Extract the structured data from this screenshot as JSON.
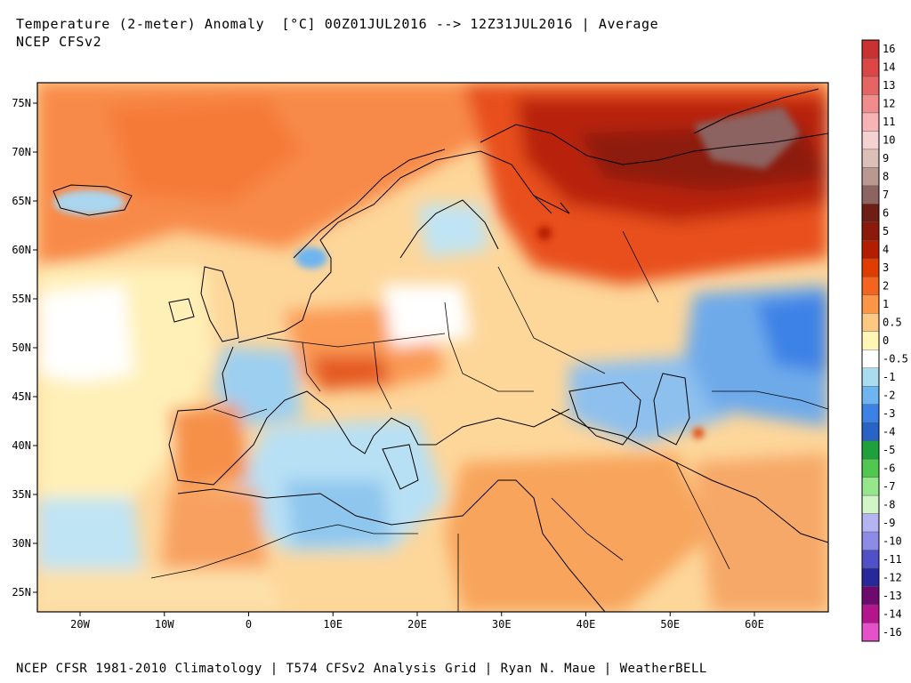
{
  "header": {
    "title": "Temperature (2-meter) Anomaly  [°C] 00Z01JUL2016 --> 12Z31JUL2016 | Average",
    "subtitle": "NCEP CFSv2"
  },
  "footer": {
    "credit": "NCEP CFSR 1981-2010 Climatology | T574 CFSv2 Analysis Grid | Ryan N. Maue | WeatherBELL"
  },
  "map": {
    "lat_ticks": [
      "75N",
      "70N",
      "65N",
      "60N",
      "55N",
      "50N",
      "45N",
      "40N",
      "35N",
      "30N",
      "25N"
    ],
    "lon_ticks": [
      "20W",
      "10W",
      "0",
      "10E",
      "20E",
      "30E",
      "40E",
      "50E",
      "60E"
    ]
  },
  "colorbar": {
    "entries": [
      {
        "label": "16",
        "color": "#c83232"
      },
      {
        "label": "14",
        "color": "#dc4646"
      },
      {
        "label": "13",
        "color": "#e66464"
      },
      {
        "label": "12",
        "color": "#f08c8c"
      },
      {
        "label": "11",
        "color": "#f8b4b4"
      },
      {
        "label": "10",
        "color": "#f5d2d2"
      },
      {
        "label": "9",
        "color": "#dcc0b8"
      },
      {
        "label": "8",
        "color": "#b89890"
      },
      {
        "label": "7",
        "color": "#8c6460"
      },
      {
        "label": "6",
        "color": "#6e1e14"
      },
      {
        "label": "5",
        "color": "#8c1a0a"
      },
      {
        "label": "4",
        "color": "#b41e00"
      },
      {
        "label": "3",
        "color": "#e13c00"
      },
      {
        "label": "2",
        "color": "#f5641e"
      },
      {
        "label": "1",
        "color": "#fa9646"
      },
      {
        "label": "0.5",
        "color": "#fdc882"
      },
      {
        "label": "0",
        "color": "#fff5b4"
      },
      {
        "label": "-0.5",
        "color": "#ffffff"
      },
      {
        "label": "-1",
        "color": "#aadcf0"
      },
      {
        "label": "-2",
        "color": "#6eb4f0"
      },
      {
        "label": "-3",
        "color": "#3c82e6"
      },
      {
        "label": "-4",
        "color": "#2864c8"
      },
      {
        "label": "-5",
        "color": "#1ea03c"
      },
      {
        "label": "-6",
        "color": "#50c850"
      },
      {
        "label": "-7",
        "color": "#96e68c"
      },
      {
        "label": "-8",
        "color": "#d2f5c8"
      },
      {
        "label": "-9",
        "color": "#b4b4f0"
      },
      {
        "label": "-10",
        "color": "#8c8ce6"
      },
      {
        "label": "-11",
        "color": "#5050c8"
      },
      {
        "label": "-12",
        "color": "#28289a"
      },
      {
        "label": "-13",
        "color": "#6e0a6e"
      },
      {
        "label": "-14",
        "color": "#b4148c"
      },
      {
        "label": "-16",
        "color": "#e650c8"
      }
    ]
  }
}
